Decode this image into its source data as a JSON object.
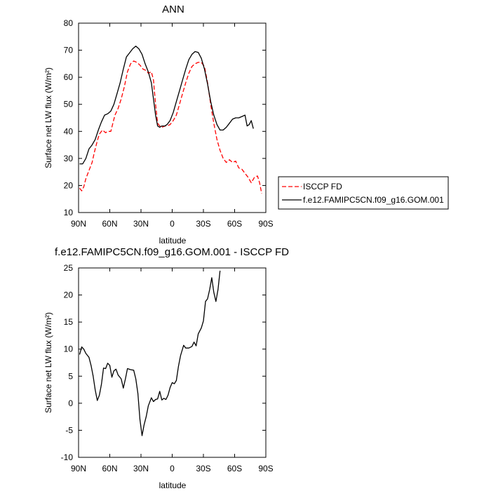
{
  "chart_data": [
    {
      "type": "line",
      "title": "ANN",
      "xlabel": "latitude",
      "ylabel": "Surface net LW flux (W/m²)",
      "xlim": [
        90,
        -90
      ],
      "ylim": [
        10,
        80
      ],
      "xticks": [
        90,
        60,
        30,
        0,
        -30,
        -60,
        -90
      ],
      "xticklabels": [
        "90N",
        "60N",
        "30N",
        "0",
        "30S",
        "60S",
        "90S"
      ],
      "yticks": [
        10,
        20,
        30,
        40,
        50,
        60,
        70,
        80
      ],
      "yticklabels": [
        "10",
        "20",
        "30",
        "40",
        "50",
        "60",
        "70",
        "80"
      ],
      "legend_position": "right",
      "series": [
        {
          "name": "ISCCP FD",
          "color": "#ff0000",
          "dash": "dashed",
          "points": [
            [
              89,
              19
            ],
            [
              87,
              18
            ],
            [
              85,
              19.5
            ],
            [
              83,
              22.5
            ],
            [
              80,
              25.5
            ],
            [
              77,
              28.5
            ],
            [
              75,
              32
            ],
            [
              72,
              36.5
            ],
            [
              70,
              39
            ],
            [
              67,
              40.5
            ],
            [
              64,
              39.5
            ],
            [
              62,
              40
            ],
            [
              59,
              40
            ],
            [
              57,
              43
            ],
            [
              55,
              46
            ],
            [
              52,
              48.5
            ],
            [
              49,
              52
            ],
            [
              46,
              56.5
            ],
            [
              43,
              62
            ],
            [
              40,
              65
            ],
            [
              37,
              66
            ],
            [
              34,
              65.5
            ],
            [
              31,
              64.5
            ],
            [
              28,
              63
            ],
            [
              25,
              62.5
            ],
            [
              23,
              61.5
            ],
            [
              20,
              62
            ],
            [
              18,
              59
            ],
            [
              16,
              50
            ],
            [
              14,
              43
            ],
            [
              12,
              42
            ],
            [
              10,
              41.5
            ],
            [
              7,
              42
            ],
            [
              5,
              42
            ],
            [
              2,
              42.5
            ],
            [
              -1,
              44
            ],
            [
              -4,
              46
            ],
            [
              -7,
              50
            ],
            [
              -10,
              54
            ],
            [
              -13,
              58
            ],
            [
              -16,
              61.5
            ],
            [
              -19,
              64
            ],
            [
              -22,
              65
            ],
            [
              -25,
              65.5
            ],
            [
              -28,
              65.5
            ],
            [
              -31,
              64
            ],
            [
              -34,
              58
            ],
            [
              -37,
              50
            ],
            [
              -40,
              43
            ],
            [
              -43,
              37
            ],
            [
              -46,
              33
            ],
            [
              -49,
              30
            ],
            [
              -52,
              28.5
            ],
            [
              -55,
              29.5
            ],
            [
              -58,
              28.5
            ],
            [
              -61,
              29
            ],
            [
              -64,
              26.5
            ],
            [
              -67,
              26
            ],
            [
              -70,
              24.5
            ],
            [
              -73,
              23
            ],
            [
              -76,
              21
            ],
            [
              -79,
              23
            ],
            [
              -82,
              23.5
            ],
            [
              -84,
              21
            ],
            [
              -86,
              17
            ]
          ]
        },
        {
          "name": "f.e12.FAMIPC5CN.f09_g16.GOM.001",
          "color": "#000000",
          "dash": "solid",
          "points": [
            [
              89,
              28
            ],
            [
              86,
              28
            ],
            [
              83,
              30
            ],
            [
              80,
              33.5
            ],
            [
              77,
              35
            ],
            [
              74,
              37
            ],
            [
              71,
              40.5
            ],
            [
              68,
              43.5
            ],
            [
              65,
              46
            ],
            [
              62,
              46.5
            ],
            [
              59,
              47.5
            ],
            [
              56,
              50
            ],
            [
              53,
              54
            ],
            [
              50,
              58
            ],
            [
              47,
              63
            ],
            [
              44,
              67.5
            ],
            [
              41,
              69
            ],
            [
              38,
              70.5
            ],
            [
              35,
              71.5
            ],
            [
              32,
              70.5
            ],
            [
              29,
              68.5
            ],
            [
              26,
              65
            ],
            [
              23,
              62
            ],
            [
              20,
              58
            ],
            [
              18,
              52
            ],
            [
              16,
              46
            ],
            [
              14,
              42
            ],
            [
              12,
              41.5
            ],
            [
              10,
              42
            ],
            [
              7,
              42
            ],
            [
              5,
              42.5
            ],
            [
              2,
              44
            ],
            [
              -1,
              47
            ],
            [
              -4,
              51
            ],
            [
              -7,
              55
            ],
            [
              -10,
              59
            ],
            [
              -13,
              63
            ],
            [
              -16,
              66.5
            ],
            [
              -19,
              68.5
            ],
            [
              -22,
              69.5
            ],
            [
              -25,
              69.2
            ],
            [
              -28,
              67
            ],
            [
              -31,
              63
            ],
            [
              -34,
              57.5
            ],
            [
              -37,
              51
            ],
            [
              -40,
              46
            ],
            [
              -43,
              42.5
            ],
            [
              -46,
              40.5
            ],
            [
              -49,
              40.5
            ],
            [
              -52,
              41.5
            ],
            [
              -55,
              43
            ],
            [
              -58,
              44.5
            ],
            [
              -61,
              45
            ],
            [
              -64,
              45
            ],
            [
              -67,
              45.5
            ],
            [
              -70,
              46
            ],
            [
              -72,
              42
            ],
            [
              -74,
              42.5
            ],
            [
              -76,
              44
            ],
            [
              -78,
              41
            ]
          ]
        }
      ]
    },
    {
      "type": "line",
      "title": "f.e12.FAMIPC5CN.f09_g16.GOM.001 - ISCCP FD",
      "xlabel": "latitude",
      "ylabel": "Surface net LW flux (W/m²)",
      "xlim": [
        90,
        -90
      ],
      "ylim": [
        -10,
        25
      ],
      "xticks": [
        90,
        60,
        30,
        0,
        -30,
        -60,
        -90
      ],
      "xticklabels": [
        "90N",
        "60N",
        "30N",
        "0",
        "30S",
        "60S",
        "90S"
      ],
      "yticks": [
        -10,
        -5,
        0,
        5,
        10,
        15,
        20,
        25
      ],
      "yticklabels": [
        "-10",
        "-5",
        "0",
        "5",
        "10",
        "15",
        "20",
        "25"
      ],
      "series": [
        {
          "color": "#000000",
          "dash": "solid",
          "points": [
            [
              89,
              9
            ],
            [
              87,
              10.4
            ],
            [
              85,
              10
            ],
            [
              83,
              9.2
            ],
            [
              80,
              8.5
            ],
            [
              78,
              7
            ],
            [
              76,
              5
            ],
            [
              74,
              2.5
            ],
            [
              72,
              0.5
            ],
            [
              70,
              1.5
            ],
            [
              68,
              3.5
            ],
            [
              66,
              6.5
            ],
            [
              64,
              6.4
            ],
            [
              62,
              7.4
            ],
            [
              60,
              7
            ],
            [
              58,
              4.8
            ],
            [
              56,
              6
            ],
            [
              54,
              6.3
            ],
            [
              52,
              5.2
            ],
            [
              49,
              4.5
            ],
            [
              47,
              2.8
            ],
            [
              45,
              4.5
            ],
            [
              43,
              6.4
            ],
            [
              40,
              6.2
            ],
            [
              37,
              6.1
            ],
            [
              35,
              4.5
            ],
            [
              33,
              1.8
            ],
            [
              31,
              -3
            ],
            [
              29,
              -6
            ],
            [
              27,
              -4
            ],
            [
              25,
              -2.5
            ],
            [
              23,
              -0.5
            ],
            [
              20,
              1
            ],
            [
              18,
              0.3
            ],
            [
              16,
              0.7
            ],
            [
              14,
              0.8
            ],
            [
              12,
              2.2
            ],
            [
              10,
              0.6
            ],
            [
              8,
              0.9
            ],
            [
              6,
              0.7
            ],
            [
              4,
              1.5
            ],
            [
              2,
              2.9
            ],
            [
              0,
              3.8
            ],
            [
              -2,
              3.6
            ],
            [
              -4,
              4.2
            ],
            [
              -6,
              6.8
            ],
            [
              -8,
              8.8
            ],
            [
              -11,
              10.7
            ],
            [
              -13,
              10.2
            ],
            [
              -16,
              10.2
            ],
            [
              -19,
              10.5
            ],
            [
              -21,
              11.3
            ],
            [
              -23,
              10.6
            ],
            [
              -25,
              12.8
            ],
            [
              -28,
              13.9
            ],
            [
              -30,
              15.2
            ],
            [
              -32,
              18.8
            ],
            [
              -34,
              19.3
            ],
            [
              -36,
              21
            ],
            [
              -38,
              23.2
            ],
            [
              -40,
              20.5
            ],
            [
              -42,
              18.8
            ],
            [
              -44,
              21
            ],
            [
              -46,
              24.5
            ]
          ]
        }
      ]
    }
  ]
}
